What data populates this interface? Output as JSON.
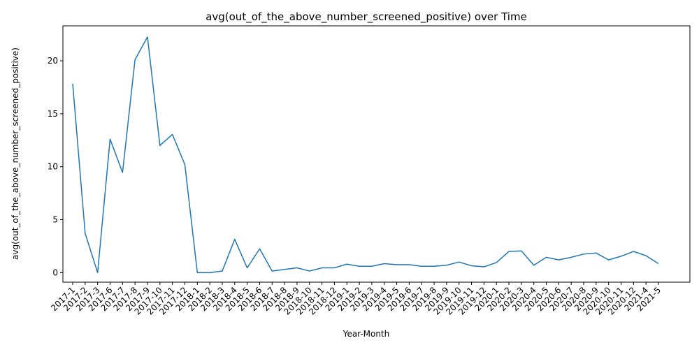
{
  "chart_data": {
    "type": "line",
    "title": "avg(out_of_the_above_number_screened_positive) over Time",
    "xlabel": "Year-Month",
    "ylabel": "avg(out_of_the_above_number_screened_positive)",
    "ylim": [
      -0.9,
      23.3
    ],
    "yticks": [
      0,
      5,
      10,
      15,
      20
    ],
    "grid": false,
    "line_color": "#1f77b4",
    "categories": [
      "2017-1",
      "2017-2",
      "2017-3",
      "2017-6",
      "2017-7",
      "2017-8",
      "2017-9",
      "2017-10",
      "2017-11",
      "2017-12",
      "2018-1",
      "2018-2",
      "2018-3",
      "2018-4",
      "2018-5",
      "2018-6",
      "2018-7",
      "2018-8",
      "2018-9",
      "2018-10",
      "2018-11",
      "2018-12",
      "2019-1",
      "2019-2",
      "2019-3",
      "2019-4",
      "2019-5",
      "2019-6",
      "2019-7",
      "2019-8",
      "2019-9",
      "2019-10",
      "2019-11",
      "2019-12",
      "2020-1",
      "2020-2",
      "2020-3",
      "2020-4",
      "2020-5",
      "2020-6",
      "2020-7",
      "2020-8",
      "2020-9",
      "2020-10",
      "2020-11",
      "2020-12",
      "2021-4",
      "2021-5"
    ],
    "series": [
      {
        "values": [
          17.85,
          3.7,
          0.0,
          12.6,
          9.45,
          20.1,
          22.25,
          12.0,
          13.05,
          10.2,
          0.0,
          0.0,
          0.15,
          3.15,
          0.45,
          2.25,
          0.15,
          0.3,
          0.45,
          0.15,
          0.45,
          0.45,
          0.8,
          0.6,
          0.6,
          0.85,
          0.75,
          0.75,
          0.6,
          0.6,
          0.7,
          1.0,
          0.65,
          0.55,
          0.95,
          2.0,
          2.05,
          0.7,
          1.45,
          1.2,
          1.45,
          1.75,
          1.85,
          1.2,
          1.55,
          2.0,
          1.6,
          0.85
        ]
      }
    ]
  }
}
